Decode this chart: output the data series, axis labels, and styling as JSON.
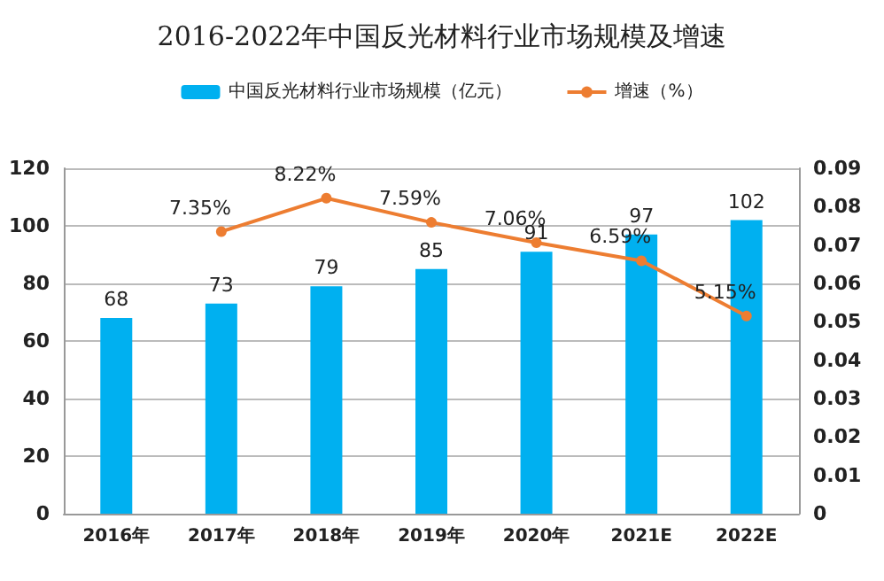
{
  "chart_data": {
    "type": "bar",
    "title": "2016-2022年中国反光材料行业市场规模及增速",
    "categories": [
      "2016年",
      "2017年",
      "2018年",
      "2019年",
      "2020年",
      "2021E",
      "2022E"
    ],
    "series": [
      {
        "name": "中国反光材料行业市场规模（亿元）",
        "color": "#00b0f0",
        "values": [
          68,
          73,
          79,
          85,
          91,
          97,
          102
        ],
        "data_labels": true
      },
      {
        "name": "增速（%）",
        "type": "line",
        "axis": "y2",
        "color": "#ed7d31",
        "marker": "circle",
        "values": [
          null,
          0.0735,
          0.0822,
          0.0759,
          0.0706,
          0.0659,
          0.0515
        ],
        "value_labels": [
          null,
          "7.35%",
          "8.22%",
          "7.59%",
          "7.06%",
          "6.59%",
          "5.15%"
        ]
      }
    ],
    "ylim": [
      0,
      120
    ],
    "yticks": [
      0,
      20,
      40,
      60,
      80,
      100,
      120
    ],
    "y2lim": [
      0,
      0.09
    ],
    "y2ticks": [
      0,
      0.01,
      0.02,
      0.03,
      0.04,
      0.05,
      0.06,
      0.07,
      0.08,
      0.09
    ],
    "grid": "y",
    "legend": "top"
  }
}
